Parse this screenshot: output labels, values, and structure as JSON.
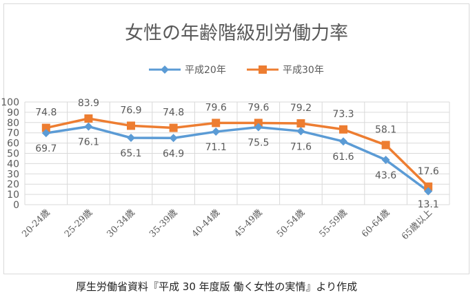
{
  "chart_data": {
    "type": "line",
    "title": "女性の年齢階級別労働力率",
    "xlabel": "",
    "ylabel": "",
    "ylim": [
      0,
      100
    ],
    "yticks": [
      0,
      10,
      20,
      30,
      40,
      50,
      60,
      70,
      80,
      90,
      100
    ],
    "grid": true,
    "legend_position": "top",
    "categories": [
      "20-24歳",
      "25-29歳",
      "30-34歳",
      "35-39歳",
      "40-44歳",
      "45-49歳",
      "50-54歳",
      "55-59歳",
      "60-64歳",
      "65歳以上"
    ],
    "series": [
      {
        "name": "平成20年",
        "color": "#5b9bd5",
        "marker": "diamond",
        "values": [
          69.7,
          76.1,
          65.1,
          64.9,
          71.1,
          75.5,
          71.6,
          61.6,
          43.6,
          13.1
        ],
        "labels": [
          "69.7",
          "76.1",
          "65.1",
          "64.9",
          "71.1",
          "75.5",
          "71.6",
          "61.6",
          "43.6",
          "13.1"
        ]
      },
      {
        "name": "平成30年",
        "color": "#ed7d31",
        "marker": "square",
        "values": [
          74.8,
          83.9,
          76.9,
          74.8,
          79.6,
          79.6,
          79.2,
          73.3,
          58.1,
          17.6
        ],
        "labels": [
          "74.8",
          "83.9",
          "76.9",
          "74.8",
          "79.6",
          "79.6",
          "79.2",
          "73.3",
          "58.1",
          "17.6"
        ]
      }
    ]
  },
  "source_note": "厚生労働省資料『平成 30 年度版 働く女性の実情』より作成"
}
